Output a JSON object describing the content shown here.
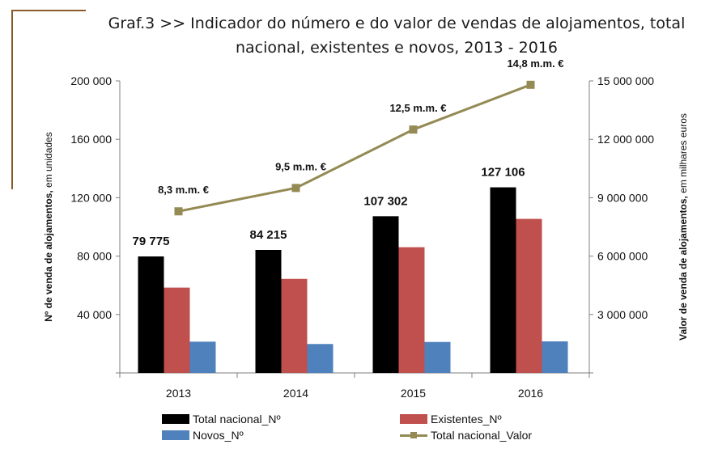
{
  "title": {
    "line1": "Graf.3  >>  Indicador do número e do valor de vendas de alojamentos, total",
    "line2": "nacional, existentes e novos, 2013 - 2016"
  },
  "chart_data": {
    "type": "bar",
    "categories": [
      "2013",
      "2014",
      "2015",
      "2016"
    ],
    "series": [
      {
        "name": "Total nacional_Nº",
        "axis": "left",
        "color": "#000000",
        "values": [
          79775,
          84215,
          107302,
          127106
        ],
        "labels": [
          "79 775",
          "84 215",
          "107 302",
          "127 106"
        ]
      },
      {
        "name": "Existentes_Nº",
        "axis": "left",
        "color": "#c0504d",
        "values": [
          58400,
          64400,
          86100,
          105500
        ]
      },
      {
        "name": "Novos_Nº",
        "axis": "left",
        "color": "#4f81bd",
        "values": [
          21400,
          19800,
          21200,
          21600
        ]
      },
      {
        "name": "Total nacional_Valor",
        "axis": "right",
        "type": "line",
        "color": "#948a54",
        "values": [
          8300000,
          9500000,
          12500000,
          14800000
        ],
        "labels": [
          "8,3 m.m. €",
          "9,5 m.m. €",
          "12,5 m.m. €",
          "14,8 m.m. €"
        ]
      }
    ],
    "ylabel_bold": "Nº de venda de alojamentos,",
    "ylabel_rest": " em unidades",
    "y2label_bold": "Valor de venda de alojamentos,",
    "y2label_rest": " em milhares euros",
    "ylim": [
      0,
      200000
    ],
    "y2lim": [
      0,
      15000000
    ],
    "yticks": [
      40000,
      80000,
      120000,
      160000,
      200000
    ],
    "yticklabels": [
      "40 000",
      "80 000",
      "120 000",
      "160 000",
      "200 000"
    ],
    "y2ticks": [
      3000000,
      6000000,
      9000000,
      12000000,
      15000000
    ],
    "y2ticklabels": [
      "3 000 000",
      "6 000 000",
      "9 000 000",
      "12 000 000",
      "15 000 000"
    ],
    "legend_position": "bottom",
    "grid": false
  }
}
